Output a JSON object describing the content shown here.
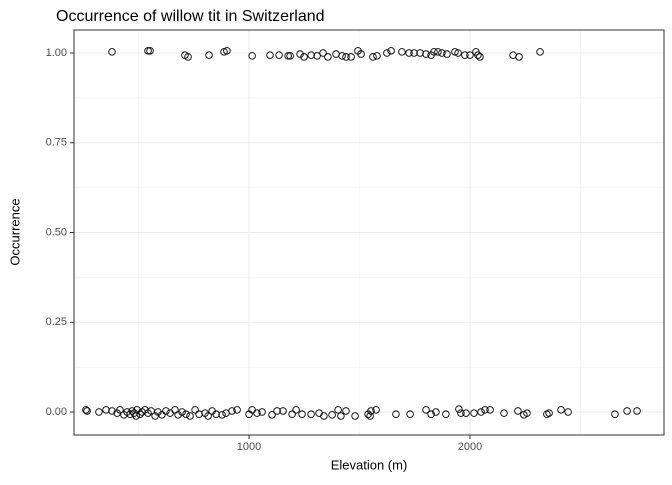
{
  "chart_data": {
    "type": "scatter",
    "title": "Occurrence of willow tit in Switzerland",
    "x_label": "Elevation (m)",
    "y_label": "Occurrence",
    "xlim": [
      208,
      2878
    ],
    "ylim": [
      -0.064,
      1.064
    ],
    "xticks": [
      1000,
      2000
    ],
    "yticks": [
      {
        "value": 0,
        "label": "0.00"
      },
      0.25,
      {
        "value": 0.5,
        "label": "0.50"
      },
      0.75,
      {
        "value": 1,
        "label": "1.00"
      }
    ],
    "grid": true,
    "minor_grid": true,
    "color": "#000000",
    "x": [
      380,
      543,
      552,
      710,
      724,
      819,
      887,
      900,
      1014,
      1095,
      1136,
      1177,
      1186,
      1231,
      1249,
      1281,
      1308,
      1335,
      1357,
      1394,
      1421,
      1439,
      1462,
      1493,
      1507,
      1561,
      1579,
      1624,
      1643,
      1692,
      1724,
      1747,
      1774,
      1801,
      1824,
      1837,
      1855,
      1873,
      1896,
      1932,
      1946,
      1977,
      2000,
      2027,
      2036,
      2045,
      2195,
      2222,
      2317,
      262,
      267,
      321,
      353,
      380,
      403,
      416,
      434,
      448,
      462,
      471,
      480,
      489,
      493,
      507,
      516,
      529,
      543,
      557,
      575,
      588,
      606,
      624,
      643,
      665,
      679,
      697,
      715,
      733,
      756,
      774,
      801,
      815,
      833,
      851,
      878,
      896,
      923,
      946,
      1000,
      1014,
      1036,
      1059,
      1104,
      1127,
      1154,
      1195,
      1213,
      1240,
      1281,
      1317,
      1339,
      1376,
      1403,
      1416,
      1439,
      1480,
      1539,
      1548,
      1552,
      1575,
      1665,
      1729,
      1801,
      1824,
      1846,
      1891,
      1950,
      1959,
      1982,
      2018,
      2050,
      2068,
      2091,
      2154,
      2217,
      2244,
      2258,
      2348,
      2358,
      2412,
      2444,
      2656,
      2711,
      2756
    ],
    "values": [
      1.003,
      1.006,
      1.006,
      0.994,
      0.989,
      0.994,
      1.003,
      1.006,
      0.992,
      0.994,
      0.994,
      0.992,
      0.992,
      0.997,
      0.989,
      0.994,
      0.992,
      1.0,
      0.989,
      0.997,
      0.992,
      0.989,
      0.989,
      1.006,
      0.997,
      0.989,
      0.992,
      1.0,
      1.006,
      1.003,
      1.0,
      1.0,
      1.0,
      0.997,
      0.994,
      1.003,
      1.003,
      1.0,
      0.997,
      1.003,
      1.0,
      0.994,
      0.994,
      1.003,
      0.994,
      0.989,
      0.994,
      0.989,
      1.003,
      0.006,
      0.003,
      0,
      0.006,
      0.003,
      -0.003,
      0.006,
      -0.008,
      0,
      -0.006,
      0.003,
      -0.003,
      -0.011,
      0.006,
      -0.006,
      0,
      0.006,
      -0.003,
      0.003,
      -0.011,
      0,
      -0.008,
      0.003,
      -0.003,
      0.006,
      -0.008,
      0,
      -0.006,
      -0.011,
      0.006,
      -0.006,
      -0.003,
      -0.011,
      0.003,
      -0.006,
      -0.008,
      -0.003,
      0.003,
      0.006,
      -0.006,
      0.006,
      -0.003,
      0,
      -0.008,
      0.003,
      0.003,
      -0.006,
      0.006,
      -0.006,
      -0.006,
      -0.003,
      -0.011,
      -0.008,
      0.006,
      -0.011,
      0.003,
      -0.011,
      -0.006,
      -0.011,
      0.003,
      0.006,
      -0.006,
      -0.006,
      0.006,
      -0.006,
      0,
      -0.006,
      0.008,
      -0.003,
      -0.003,
      -0.003,
      0,
      0.006,
      0.006,
      -0.003,
      0.003,
      -0.008,
      -0.003,
      -0.006,
      -0.003,
      0.006,
      0,
      -0.006,
      0.003,
      0.003
    ]
  }
}
